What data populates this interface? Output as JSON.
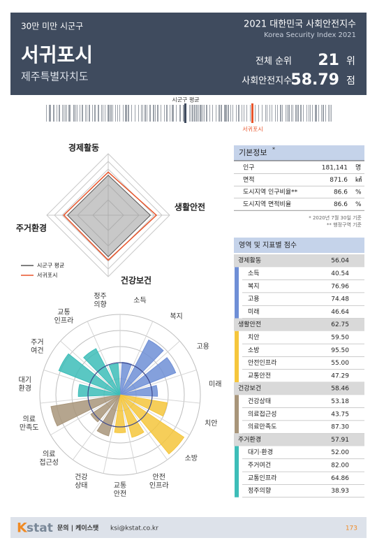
{
  "header": {
    "group": "30만 미만 시군구",
    "index_title": "2021 대한민국 사회안전지수",
    "index_subtitle": "Korea Security Index 2021",
    "city": "서귀포시",
    "province": "제주특별자치도",
    "rank_label": "전체 순위",
    "rank": 21,
    "rank_unit": "위",
    "score_label": "사회안전지수",
    "score": 58.79,
    "score_unit": "점"
  },
  "barcode": {
    "avg_label": "시군구 평균",
    "city_label": "서귀포시"
  },
  "basic_info": {
    "title": "기본정보",
    "title_mark": "*",
    "rows": [
      [
        "인구",
        "181,141",
        "명"
      ],
      [
        "면적",
        "871.6",
        "㎢"
      ],
      [
        "도시지역 인구비율**",
        "86.6",
        "%"
      ],
      [
        "도시지역 면적비율",
        "86.6",
        "%"
      ]
    ],
    "notes": [
      "* 2020년 7월 30일 기준",
      "** 행정구역 기준"
    ]
  },
  "scores": {
    "title": "영역 및 지표별 점수",
    "groups": [
      {
        "name": "경제활동",
        "score": "56.04",
        "color": "#6f8fd6",
        "items": [
          [
            "소득",
            "40.54"
          ],
          [
            "복지",
            "76.96"
          ],
          [
            "고용",
            "74.48"
          ],
          [
            "미래",
            "46.64"
          ]
        ]
      },
      {
        "name": "생활안전",
        "score": "62.75",
        "color": "#f5c63c",
        "items": [
          [
            "치안",
            "59.50"
          ],
          [
            "소방",
            "95.50"
          ],
          [
            "안전인프라",
            "55.00"
          ],
          [
            "교통안전",
            "47.29"
          ]
        ]
      },
      {
        "name": "건강보건",
        "score": "58.46",
        "color": "#a8957a",
        "items": [
          [
            "건강상태",
            "53.18"
          ],
          [
            "의료접근성",
            "43.75"
          ],
          [
            "의료만족도",
            "87.30"
          ]
        ]
      },
      {
        "name": "주거환경",
        "score": "57.91",
        "color": "#3dbdb8",
        "items": [
          [
            "대기·환경",
            "52.00"
          ],
          [
            "주거여건",
            "82.00"
          ],
          [
            "교통인프라",
            "64.86"
          ],
          [
            "정주의향",
            "38.93"
          ]
        ]
      }
    ]
  },
  "chart_data": [
    {
      "type": "radar",
      "categories": [
        "경제활동",
        "생활안전",
        "건강보건",
        "주거환경"
      ],
      "series": [
        {
          "name": "시군구 평균",
          "color": "#555555",
          "values": [
            52,
            55,
            54,
            53
          ]
        },
        {
          "name": "서귀포시",
          "color": "#e8542a",
          "values": [
            56.04,
            62.75,
            58.46,
            57.91
          ]
        }
      ],
      "rlim": [
        0,
        80
      ],
      "rticks": [
        20,
        40,
        60,
        70,
        80
      ]
    },
    {
      "type": "polar-bar",
      "categories": [
        "소득",
        "복지",
        "고용",
        "미래",
        "치안",
        "소방",
        "안전\n인프라",
        "교통\n안전",
        "건강\n상태",
        "의료\n접근성",
        "의료\n만족도",
        "대기\n환경",
        "주거\n여건",
        "교통\n인프라",
        "정주\n의향"
      ],
      "values": [
        40.54,
        76.96,
        74.48,
        46.64,
        59.5,
        95.5,
        55.0,
        47.29,
        53.18,
        43.75,
        87.3,
        52.0,
        82.0,
        64.86,
        38.93
      ],
      "colors": [
        "#6f8fd6",
        "#6f8fd6",
        "#6f8fd6",
        "#6f8fd6",
        "#f5c63c",
        "#f5c63c",
        "#f5c63c",
        "#f5c63c",
        "#a8957a",
        "#a8957a",
        "#a8957a",
        "#3dbdb8",
        "#3dbdb8",
        "#3dbdb8",
        "#3dbdb8"
      ],
      "rlim": [
        0,
        100
      ],
      "rticks": [
        20,
        40,
        60,
        80,
        100
      ]
    }
  ],
  "footer": {
    "logo_k": "K",
    "logo_rest": "stat",
    "contact": "문의 | 케이스탯",
    "email": "ksi@kstat.co.kr",
    "page": "173"
  }
}
